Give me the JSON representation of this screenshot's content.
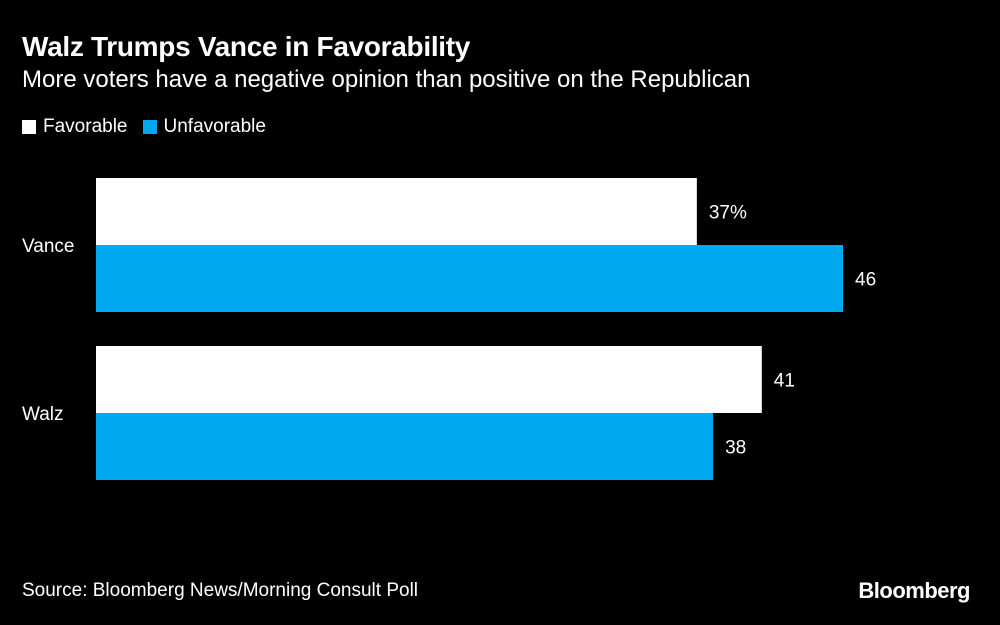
{
  "colors": {
    "background": "#000000",
    "text": "#ffffff",
    "favorable": "#ffffff",
    "unfavorable": "#00a8f0"
  },
  "footer": {
    "source": "Source: Bloomberg News/Morning Consult Poll",
    "logo": "Bloomberg"
  },
  "chart_data": {
    "type": "bar",
    "orientation": "horizontal",
    "title": "Walz Trumps Vance in Favorability",
    "subtitle": "More voters have a negative opinion than positive on the Republican",
    "categories": [
      "Vance",
      "Walz"
    ],
    "series": [
      {
        "name": "Favorable",
        "color": "#ffffff",
        "values": [
          37,
          41
        ],
        "labels": [
          "37%",
          "41"
        ]
      },
      {
        "name": "Unfavorable",
        "color": "#00a8f0",
        "values": [
          46,
          38
        ],
        "labels": [
          "46",
          "38"
        ]
      }
    ],
    "xlim": [
      0,
      46
    ],
    "grid": false,
    "legend_position": "top-left"
  }
}
